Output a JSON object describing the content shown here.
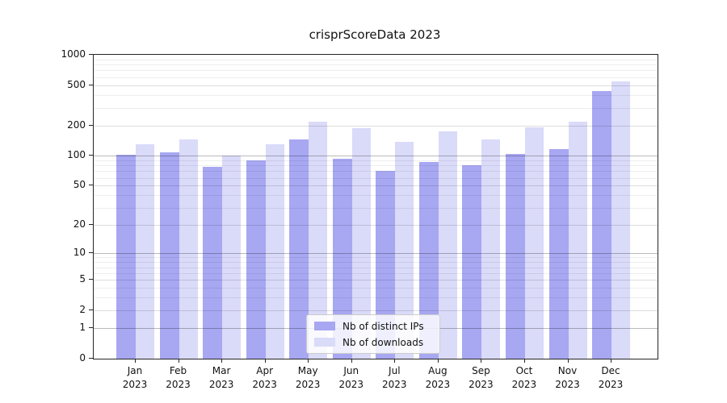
{
  "title": "crisprScoreData 2023",
  "chart_data": {
    "type": "bar",
    "title": "crisprScoreData 2023",
    "categories": [
      "Jan 2023",
      "Feb 2023",
      "Mar 2023",
      "Apr 2023",
      "May 2023",
      "Jun 2023",
      "Jul 2023",
      "Aug 2023",
      "Sep 2023",
      "Oct 2023",
      "Nov 2023",
      "Dec 2023"
    ],
    "series": [
      {
        "name": "Nb of distinct IPs",
        "color": "#a7a7f2",
        "values": [
          102,
          109,
          78,
          89,
          146,
          93,
          71,
          86,
          81,
          105,
          116,
          440
        ]
      },
      {
        "name": "Nb of downloads",
        "color": "#dadaf9",
        "values": [
          129,
          144,
          100,
          130,
          218,
          187,
          138,
          174,
          144,
          192,
          216,
          550
        ]
      }
    ],
    "yscale": "log1p",
    "ylim": [
      0,
      1000
    ],
    "yticks": [
      0,
      1,
      2,
      5,
      10,
      20,
      50,
      100,
      200,
      500,
      1000
    ],
    "xlabel": "",
    "ylabel": "",
    "grid": true,
    "grid_above_bars": true,
    "legend_position": "lower center"
  }
}
